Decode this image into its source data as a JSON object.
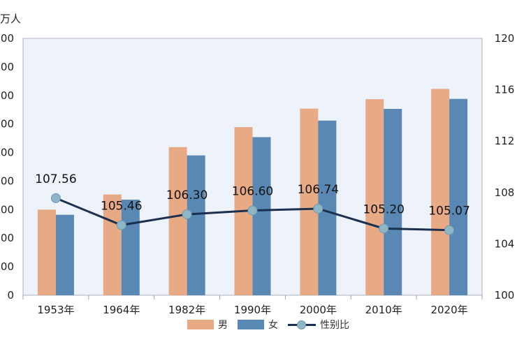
{
  "chart_data": {
    "type": "bar",
    "categories": [
      "1953年",
      "1964年",
      "1982年",
      "1990年",
      "2000年",
      "2010年",
      "2020年"
    ],
    "series": [
      {
        "name": "男",
        "type": "bar",
        "axis": "left",
        "values": [
          30000,
          35300,
          51900,
          58900,
          65400,
          68700,
          72300
        ]
      },
      {
        "name": "女",
        "type": "bar",
        "axis": "left",
        "values": [
          28200,
          33500,
          49000,
          55400,
          61200,
          65300,
          68800
        ]
      },
      {
        "name": "性别比",
        "type": "line",
        "axis": "right",
        "values": [
          107.56,
          105.46,
          106.3,
          106.6,
          106.74,
          105.2,
          105.07
        ]
      }
    ],
    "data_labels": [
      "107.56",
      "105.46",
      "106.30",
      "106.60",
      "106.74",
      "105.20",
      "105.07"
    ],
    "ylabel": "万人",
    "ylim": [
      0,
      90000
    ],
    "y_ticks": [
      "0",
      "0000",
      "0000",
      "0000",
      "0000",
      "0000",
      "0000",
      "0000",
      "0000",
      "0000"
    ],
    "y2lim": [
      100,
      120
    ],
    "y2_ticks": [
      "100",
      "104",
      "108",
      "112",
      "116",
      "120"
    ],
    "grid": false,
    "legend": "bottom",
    "colors": {
      "male": "#e8a985",
      "female": "#5a88b5",
      "line": "#1b2f4e",
      "marker": "#8db6c7",
      "plot_bg": "#eef2fa"
    }
  }
}
